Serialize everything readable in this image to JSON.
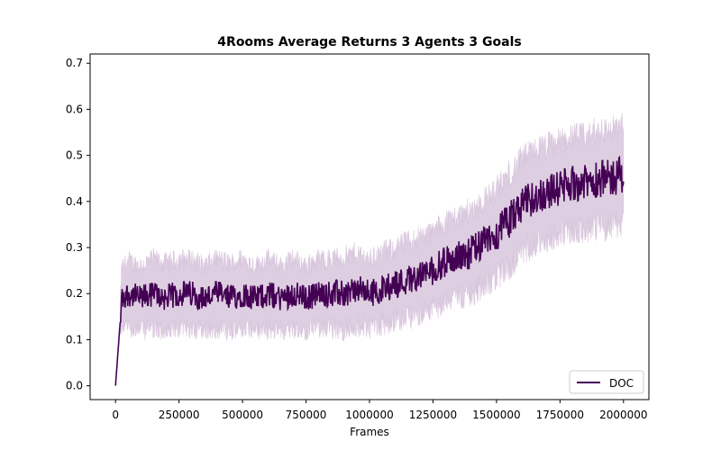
{
  "chart_data": {
    "type": "line",
    "title": "4Rooms Average Returns 3 Agents 3 Goals",
    "xlabel": "Frames",
    "ylabel": "",
    "xlim": [
      -100000,
      2100000
    ],
    "ylim": [
      -0.03,
      0.72
    ],
    "xticks": [
      0,
      250000,
      500000,
      750000,
      1000000,
      1250000,
      1500000,
      1750000,
      2000000
    ],
    "xtick_labels": [
      "0",
      "250000",
      "500000",
      "750000",
      "1000000",
      "1250000",
      "1500000",
      "1750000",
      "2000000"
    ],
    "yticks": [
      0.0,
      0.1,
      0.2,
      0.3,
      0.4,
      0.5,
      0.6,
      0.7
    ],
    "ytick_labels": [
      "0.0",
      "0.1",
      "0.2",
      "0.3",
      "0.4",
      "0.5",
      "0.6",
      "0.7"
    ],
    "grid": false,
    "legend_position": "lower-right",
    "series": [
      {
        "name": "DOC",
        "color": "#440154",
        "band_color": "#d8c6dc",
        "x": [
          0,
          25000,
          50000,
          100000,
          150000,
          200000,
          250000,
          300000,
          350000,
          400000,
          450000,
          500000,
          550000,
          600000,
          650000,
          700000,
          750000,
          800000,
          850000,
          900000,
          950000,
          1000000,
          1050000,
          1100000,
          1150000,
          1200000,
          1250000,
          1300000,
          1350000,
          1400000,
          1450000,
          1500000,
          1550000,
          1600000,
          1650000,
          1700000,
          1750000,
          1800000,
          1850000,
          1900000,
          1950000,
          2000000
        ],
        "mean": [
          0.0,
          0.19,
          0.2,
          0.19,
          0.2,
          0.19,
          0.2,
          0.2,
          0.19,
          0.2,
          0.19,
          0.2,
          0.19,
          0.2,
          0.19,
          0.2,
          0.19,
          0.2,
          0.2,
          0.2,
          0.21,
          0.2,
          0.21,
          0.22,
          0.23,
          0.24,
          0.25,
          0.27,
          0.28,
          0.29,
          0.31,
          0.33,
          0.36,
          0.39,
          0.41,
          0.42,
          0.43,
          0.44,
          0.44,
          0.45,
          0.45,
          0.46
        ],
        "lower": [
          0.0,
          0.12,
          0.12,
          0.11,
          0.11,
          0.11,
          0.11,
          0.11,
          0.11,
          0.11,
          0.11,
          0.11,
          0.11,
          0.11,
          0.11,
          0.11,
          0.11,
          0.11,
          0.11,
          0.11,
          0.12,
          0.12,
          0.12,
          0.13,
          0.14,
          0.15,
          0.16,
          0.17,
          0.18,
          0.19,
          0.21,
          0.23,
          0.25,
          0.28,
          0.3,
          0.31,
          0.32,
          0.33,
          0.33,
          0.33,
          0.33,
          0.34
        ],
        "upper": [
          0.0,
          0.28,
          0.29,
          0.28,
          0.29,
          0.29,
          0.29,
          0.29,
          0.28,
          0.29,
          0.29,
          0.29,
          0.28,
          0.29,
          0.28,
          0.29,
          0.28,
          0.29,
          0.29,
          0.3,
          0.31,
          0.3,
          0.31,
          0.32,
          0.34,
          0.35,
          0.36,
          0.38,
          0.39,
          0.41,
          0.43,
          0.46,
          0.49,
          0.52,
          0.54,
          0.55,
          0.56,
          0.57,
          0.57,
          0.58,
          0.58,
          0.59
        ]
      }
    ]
  }
}
